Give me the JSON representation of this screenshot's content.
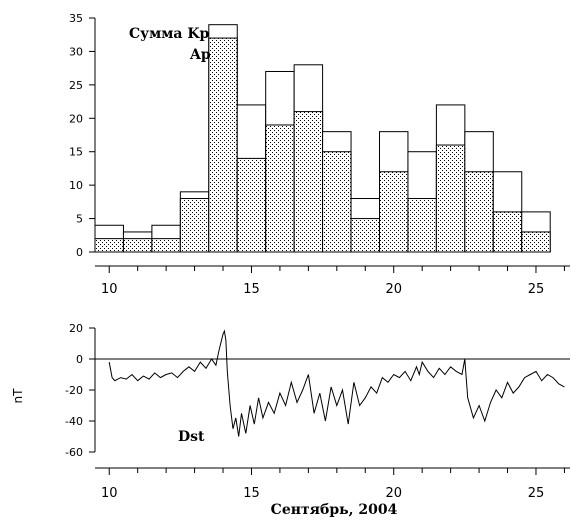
{
  "chart_data": [
    {
      "type": "bar",
      "x": [
        10,
        11,
        12,
        13,
        14,
        15,
        16,
        17,
        18,
        19,
        20,
        21,
        22,
        23,
        24,
        25
      ],
      "series": [
        {
          "name": "Сумма Kp",
          "values": [
            4,
            3,
            4,
            9,
            34,
            22,
            27,
            28,
            18,
            8,
            18,
            15,
            22,
            18,
            12,
            6
          ]
        },
        {
          "name": "Ap",
          "values": [
            2,
            2,
            2,
            8,
            32,
            14,
            19,
            21,
            15,
            5,
            12,
            8,
            16,
            12,
            6,
            3
          ]
        }
      ],
      "ylim": [
        0,
        35
      ],
      "yticks": [
        0,
        5,
        10,
        15,
        20,
        25,
        30,
        35
      ],
      "xlim": [
        9.5,
        26
      ],
      "xticks": [
        10,
        15,
        20,
        25
      ]
    },
    {
      "type": "line",
      "series": [
        {
          "name": "Dst",
          "x": [
            10.0,
            10.1,
            10.2,
            10.4,
            10.6,
            10.8,
            11.0,
            11.2,
            11.4,
            11.6,
            11.8,
            12.0,
            12.2,
            12.4,
            12.6,
            12.8,
            13.0,
            13.2,
            13.4,
            13.6,
            13.75,
            13.85,
            13.92,
            14.0,
            14.05,
            14.1,
            14.15,
            14.25,
            14.35,
            14.45,
            14.55,
            14.65,
            14.8,
            14.95,
            15.1,
            15.25,
            15.4,
            15.6,
            15.8,
            16.0,
            16.2,
            16.4,
            16.6,
            16.8,
            17.0,
            17.2,
            17.4,
            17.6,
            17.8,
            18.0,
            18.2,
            18.4,
            18.6,
            18.8,
            19.0,
            19.2,
            19.4,
            19.6,
            19.8,
            20.0,
            20.2,
            20.4,
            20.6,
            20.8,
            20.9,
            21.0,
            21.2,
            21.4,
            21.6,
            21.8,
            22.0,
            22.2,
            22.4,
            22.5,
            22.6,
            22.8,
            23.0,
            23.2,
            23.4,
            23.6,
            23.8,
            24.0,
            24.2,
            24.4,
            24.6,
            24.8,
            25.0,
            25.2,
            25.4,
            25.6,
            25.8,
            26.0
          ],
          "values": [
            -2,
            -12,
            -14,
            -12,
            -13,
            -10,
            -14,
            -11,
            -13,
            -9,
            -12,
            -10,
            -9,
            -12,
            -8,
            -5,
            -8,
            -2,
            -6,
            0,
            -4,
            5,
            10,
            16,
            18,
            12,
            -8,
            -30,
            -45,
            -38,
            -50,
            -35,
            -48,
            -30,
            -42,
            -25,
            -38,
            -28,
            -35,
            -22,
            -30,
            -15,
            -28,
            -20,
            -10,
            -35,
            -22,
            -40,
            -18,
            -30,
            -20,
            -42,
            -15,
            -30,
            -25,
            -18,
            -22,
            -12,
            -15,
            -10,
            -12,
            -8,
            -14,
            -5,
            -10,
            -2,
            -8,
            -12,
            -6,
            -10,
            -5,
            -8,
            -10,
            0,
            -25,
            -38,
            -30,
            -40,
            -28,
            -20,
            -25,
            -15,
            -22,
            -18,
            -12,
            -10,
            -8,
            -14,
            -10,
            -12,
            -16,
            -18
          ]
        }
      ],
      "ylabel": "nT",
      "xlabel": "Сентябрь, 2004",
      "ylim": [
        -60,
        20
      ],
      "yticks": [
        -60,
        -40,
        -20,
        0,
        20
      ],
      "xlim": [
        9.5,
        26
      ],
      "xticks": [
        10,
        15,
        20,
        25
      ]
    }
  ],
  "labels": {
    "sum_kp": "Сумма Kp",
    "ap": "Ap",
    "dst": "Dst",
    "y2": "nT",
    "x2": "Сентябрь, 2004"
  }
}
